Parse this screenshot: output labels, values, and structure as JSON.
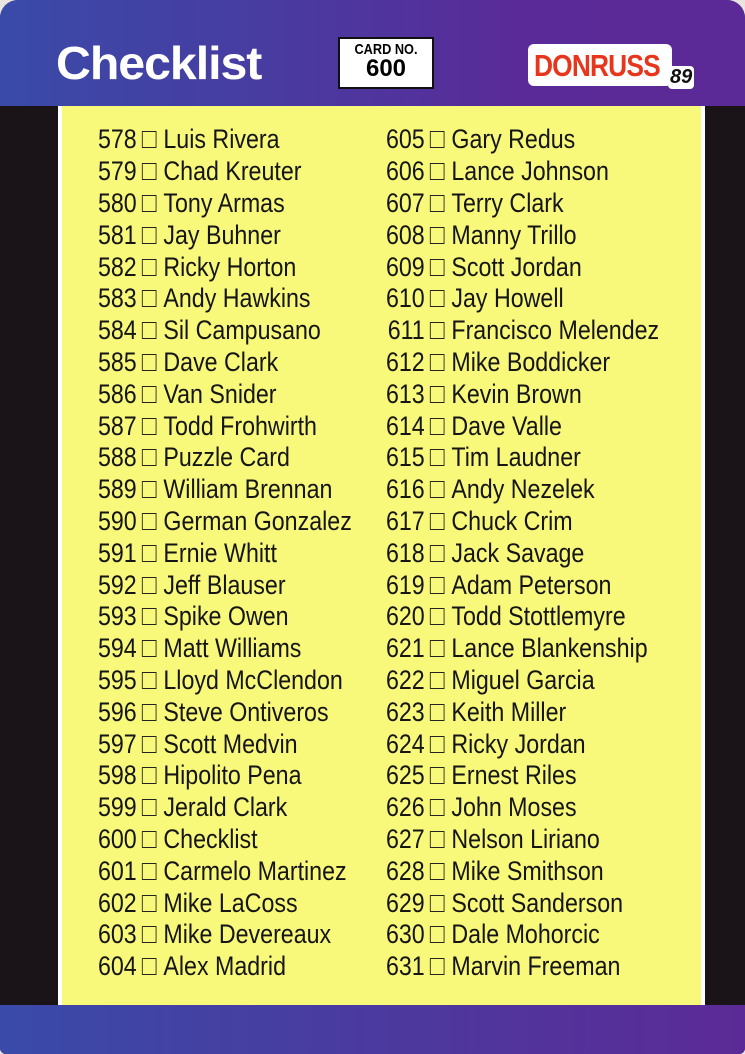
{
  "header": {
    "title": "Checklist",
    "card_no_label": "CARD NO.",
    "card_no": "600",
    "brand": "DONRUSS",
    "year": "89"
  },
  "colors": {
    "header_start": "#3a4aa8",
    "header_end": "#5c2a96",
    "panel": "#f8f87a",
    "logo_red": "#e8361c"
  },
  "left_column": [
    {
      "num": "578",
      "name": "Luis Rivera"
    },
    {
      "num": "579",
      "name": "Chad Kreuter"
    },
    {
      "num": "580",
      "name": "Tony Armas"
    },
    {
      "num": "581",
      "name": "Jay Buhner"
    },
    {
      "num": "582",
      "name": "Ricky Horton"
    },
    {
      "num": "583",
      "name": "Andy Hawkins"
    },
    {
      "num": "584",
      "name": "Sil Campusano"
    },
    {
      "num": "585",
      "name": "Dave Clark"
    },
    {
      "num": "586",
      "name": "Van Snider"
    },
    {
      "num": "587",
      "name": "Todd Frohwirth"
    },
    {
      "num": "588",
      "name": "Puzzle Card"
    },
    {
      "num": "589",
      "name": "William Brennan"
    },
    {
      "num": "590",
      "name": "German Gonzalez"
    },
    {
      "num": "591",
      "name": "Ernie Whitt"
    },
    {
      "num": "592",
      "name": "Jeff Blauser"
    },
    {
      "num": "593",
      "name": "Spike Owen"
    },
    {
      "num": "594",
      "name": "Matt Williams"
    },
    {
      "num": "595",
      "name": "Lloyd McClendon"
    },
    {
      "num": "596",
      "name": "Steve Ontiveros"
    },
    {
      "num": "597",
      "name": "Scott Medvin"
    },
    {
      "num": "598",
      "name": "Hipolito Pena"
    },
    {
      "num": "599",
      "name": "Jerald Clark"
    },
    {
      "num": "600",
      "name": "Checklist"
    },
    {
      "num": "601",
      "name": "Carmelo Martinez"
    },
    {
      "num": "602",
      "name": "Mike LaCoss"
    },
    {
      "num": "603",
      "name": "Mike Devereaux"
    },
    {
      "num": "604",
      "name": "Alex Madrid"
    }
  ],
  "right_column": [
    {
      "num": "605",
      "name": "Gary Redus"
    },
    {
      "num": "606",
      "name": "Lance Johnson"
    },
    {
      "num": "607",
      "name": "Terry Clark"
    },
    {
      "num": "608",
      "name": "Manny Trillo"
    },
    {
      "num": "609",
      "name": "Scott Jordan"
    },
    {
      "num": "610",
      "name": "Jay Howell"
    },
    {
      "num": "611",
      "name": "Francisco Melendez"
    },
    {
      "num": "612",
      "name": "Mike Boddicker"
    },
    {
      "num": "613",
      "name": "Kevin Brown"
    },
    {
      "num": "614",
      "name": "Dave Valle"
    },
    {
      "num": "615",
      "name": "Tim Laudner"
    },
    {
      "num": "616",
      "name": "Andy Nezelek"
    },
    {
      "num": "617",
      "name": "Chuck Crim"
    },
    {
      "num": "618",
      "name": "Jack Savage"
    },
    {
      "num": "619",
      "name": "Adam Peterson"
    },
    {
      "num": "620",
      "name": "Todd Stottlemyre"
    },
    {
      "num": "621",
      "name": "Lance Blankenship"
    },
    {
      "num": "622",
      "name": "Miguel Garcia"
    },
    {
      "num": "623",
      "name": "Keith Miller"
    },
    {
      "num": "624",
      "name": "Ricky Jordan"
    },
    {
      "num": "625",
      "name": "Ernest Riles"
    },
    {
      "num": "626",
      "name": "John Moses"
    },
    {
      "num": "627",
      "name": "Nelson Liriano"
    },
    {
      "num": "628",
      "name": "Mike Smithson"
    },
    {
      "num": "629",
      "name": "Scott Sanderson"
    },
    {
      "num": "630",
      "name": "Dale Mohorcic"
    },
    {
      "num": "631",
      "name": "Marvin Freeman"
    }
  ]
}
